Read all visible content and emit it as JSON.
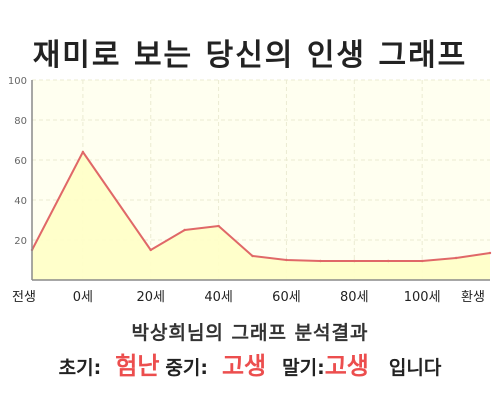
{
  "header": {
    "title": "재미로 보는 당신의 인생 그래프"
  },
  "chart_data": {
    "type": "area",
    "x_labels": [
      "전생",
      "0세",
      "20세",
      "40세",
      "60세",
      "80세",
      "100세",
      "환생"
    ],
    "x": [
      -15,
      0,
      20,
      30,
      40,
      50,
      60,
      70,
      80,
      90,
      100,
      110,
      120
    ],
    "y": [
      15,
      64,
      15,
      25,
      27,
      12,
      10,
      9.5,
      9.5,
      9.5,
      9.5,
      11,
      13.5
    ],
    "ylim": [
      0,
      100
    ],
    "yticks": [
      20,
      40,
      60,
      80,
      100
    ],
    "grid": true,
    "colors": {
      "line": "#e06868",
      "fill": "#ffffc8",
      "plot_bg": "#fffff0",
      "grid": "#ebebd2"
    }
  },
  "summary": {
    "owner_line": "박상희님의 그래프 분석결과",
    "early_label": "초기:",
    "early_value": "험난",
    "middle_label": "중기:",
    "middle_value": "고생",
    "late_label": "말기:",
    "late_value": "고생",
    "tail": "입니다"
  }
}
